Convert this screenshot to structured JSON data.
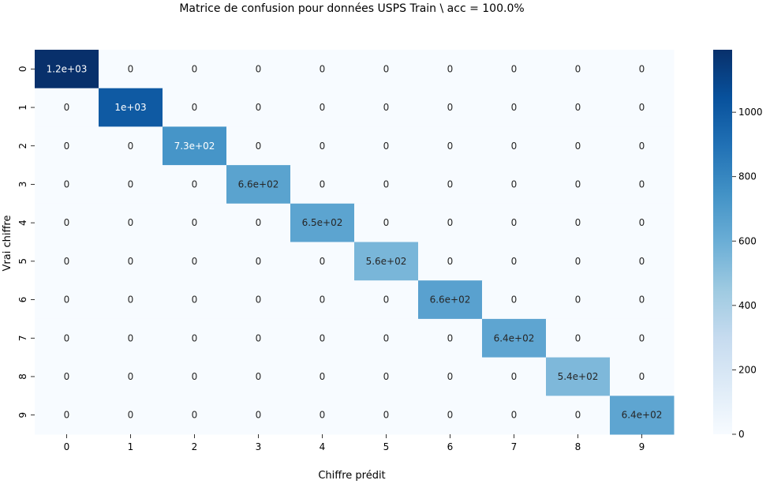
{
  "chart_data": {
    "type": "heatmap",
    "title": "Matrice de confusion pour données USPS Train \\ acc = 100.0%",
    "xlabel": "Chiffre prédit",
    "ylabel": "Vrai chiffre",
    "x_categories": [
      "0",
      "1",
      "2",
      "3",
      "4",
      "5",
      "6",
      "7",
      "8",
      "9"
    ],
    "y_categories": [
      "0",
      "1",
      "2",
      "3",
      "4",
      "5",
      "6",
      "7",
      "8",
      "9"
    ],
    "values": [
      [
        1194,
        0,
        0,
        0,
        0,
        0,
        0,
        0,
        0,
        0
      ],
      [
        0,
        1005,
        0,
        0,
        0,
        0,
        0,
        0,
        0,
        0
      ],
      [
        0,
        0,
        731,
        0,
        0,
        0,
        0,
        0,
        0,
        0
      ],
      [
        0,
        0,
        0,
        658,
        0,
        0,
        0,
        0,
        0,
        0
      ],
      [
        0,
        0,
        0,
        0,
        652,
        0,
        0,
        0,
        0,
        0
      ],
      [
        0,
        0,
        0,
        0,
        0,
        556,
        0,
        0,
        0,
        0
      ],
      [
        0,
        0,
        0,
        0,
        0,
        0,
        664,
        0,
        0,
        0
      ],
      [
        0,
        0,
        0,
        0,
        0,
        0,
        0,
        645,
        0,
        0
      ],
      [
        0,
        0,
        0,
        0,
        0,
        0,
        0,
        0,
        542,
        0
      ],
      [
        0,
        0,
        0,
        0,
        0,
        0,
        0,
        0,
        0,
        644
      ]
    ],
    "annotations": [
      [
        "1.2e+03",
        "0",
        "0",
        "0",
        "0",
        "0",
        "0",
        "0",
        "0",
        "0"
      ],
      [
        "0",
        "1e+03",
        "0",
        "0",
        "0",
        "0",
        "0",
        "0",
        "0",
        "0"
      ],
      [
        "0",
        "0",
        "7.3e+02",
        "0",
        "0",
        "0",
        "0",
        "0",
        "0",
        "0"
      ],
      [
        "0",
        "0",
        "0",
        "6.6e+02",
        "0",
        "0",
        "0",
        "0",
        "0",
        "0"
      ],
      [
        "0",
        "0",
        "0",
        "0",
        "6.5e+02",
        "0",
        "0",
        "0",
        "0",
        "0"
      ],
      [
        "0",
        "0",
        "0",
        "0",
        "0",
        "5.6e+02",
        "0",
        "0",
        "0",
        "0"
      ],
      [
        "0",
        "0",
        "0",
        "0",
        "0",
        "0",
        "6.6e+02",
        "0",
        "0",
        "0"
      ],
      [
        "0",
        "0",
        "0",
        "0",
        "0",
        "0",
        "0",
        "6.4e+02",
        "0",
        "0"
      ],
      [
        "0",
        "0",
        "0",
        "0",
        "0",
        "0",
        "0",
        "0",
        "5.4e+02",
        "0"
      ],
      [
        "0",
        "0",
        "0",
        "0",
        "0",
        "0",
        "0",
        "0",
        "0",
        "6.4e+02"
      ]
    ],
    "colorbar": {
      "vmin": 0,
      "vmax": 1194,
      "ticks": [
        0,
        200,
        400,
        600,
        800,
        1000
      ],
      "tick_labels": [
        "0",
        "200",
        "400",
        "600",
        "800",
        "1000"
      ],
      "colormap": "Blues"
    },
    "grid": false
  }
}
